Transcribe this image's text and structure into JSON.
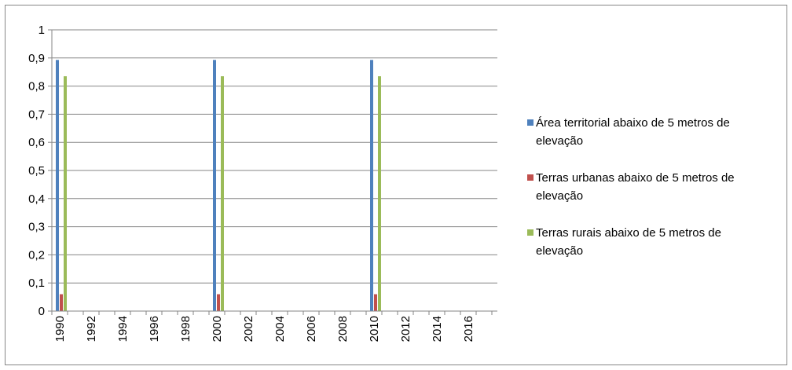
{
  "chart_data": {
    "type": "bar",
    "title": "",
    "xlabel": "",
    "ylabel": "",
    "ylim": [
      0,
      1
    ],
    "yticks": [
      "0",
      "0,1",
      "0,2",
      "0,3",
      "0,4",
      "0,5",
      "0,6",
      "0,7",
      "0,8",
      "0,9",
      "1"
    ],
    "categories": [
      "1990",
      "1991",
      "1992",
      "1993",
      "1994",
      "1995",
      "1996",
      "1997",
      "1998",
      "1999",
      "2000",
      "2001",
      "2002",
      "2003",
      "2004",
      "2005",
      "2006",
      "2007",
      "2008",
      "2009",
      "2010",
      "2011",
      "2012",
      "2013",
      "2014",
      "2015",
      "2016",
      "2017"
    ],
    "xtick_labels": [
      "1990",
      "",
      "1992",
      "",
      "1994",
      "",
      "1996",
      "",
      "1998",
      "",
      "2000",
      "",
      "2002",
      "",
      "2004",
      "",
      "2006",
      "",
      "2008",
      "",
      "2010",
      "",
      "2012",
      "",
      "2014",
      "",
      "2016",
      ""
    ],
    "grid": true,
    "legend_position": "right",
    "series": [
      {
        "name": "Área territorial abaixo de 5 metros de elevação",
        "legend_lines": [
          "Área territorial abaixo de 5 metros de",
          "elevação"
        ],
        "color": "#4F81BD",
        "values": [
          0.893,
          null,
          null,
          null,
          null,
          null,
          null,
          null,
          null,
          null,
          0.893,
          null,
          null,
          null,
          null,
          null,
          null,
          null,
          null,
          null,
          0.893,
          null,
          null,
          null,
          null,
          null,
          null,
          null
        ]
      },
      {
        "name": "Terras urbanas abaixo de 5 metros de elevação",
        "legend_lines": [
          "Terras urbanas abaixo de 5 metros de",
          "elevação"
        ],
        "color": "#C0504D",
        "values": [
          0.06,
          null,
          null,
          null,
          null,
          null,
          null,
          null,
          null,
          null,
          0.06,
          null,
          null,
          null,
          null,
          null,
          null,
          null,
          null,
          null,
          0.06,
          null,
          null,
          null,
          null,
          null,
          null,
          null
        ]
      },
      {
        "name": "Terras rurais abaixo de 5 metros de elevação",
        "legend_lines": [
          "Terras rurais abaixo de 5 metros de",
          "elevação"
        ],
        "color": "#9BBB59",
        "values": [
          0.835,
          null,
          null,
          null,
          null,
          null,
          null,
          null,
          null,
          null,
          0.835,
          null,
          null,
          null,
          null,
          null,
          null,
          null,
          null,
          null,
          0.835,
          null,
          null,
          null,
          null,
          null,
          null,
          null
        ]
      }
    ]
  }
}
